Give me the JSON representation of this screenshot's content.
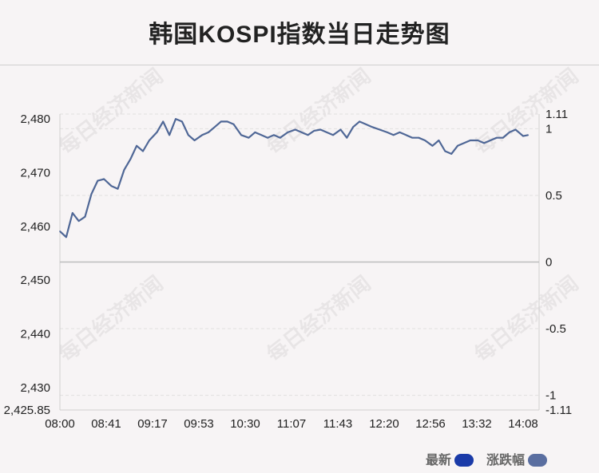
{
  "title": "韩国KOSPI指数当日走势图",
  "watermark_text": "每日经济新闻",
  "legend": {
    "latest_label": "最新",
    "change_label": "涨跌幅",
    "latest_color": "#1a3aa8",
    "change_color": "#5a6ea0"
  },
  "chart_data": {
    "type": "line",
    "title": "韩国KOSPI指数当日走势图",
    "line_color": "#4f6796",
    "x_ticks": [
      "08:00",
      "08:41",
      "09:17",
      "09:53",
      "10:30",
      "11:07",
      "11:43",
      "12:20",
      "12:56",
      "13:32",
      "14:08"
    ],
    "y_left": {
      "min": 2425.85,
      "max": 2480.9,
      "ticks": [
        "2,480",
        "2,470",
        "2,460",
        "2,450",
        "2,440",
        "2,430",
        "2,425.85"
      ],
      "tick_values": [
        2480,
        2470,
        2460,
        2450,
        2440,
        2430,
        2425.85
      ]
    },
    "y_right": {
      "min": -1.11,
      "max": 1.11,
      "ticks": [
        "1.11",
        "1",
        "0.5",
        "0",
        "-0.5",
        "-1",
        "-1.11"
      ],
      "tick_values": [
        1.11,
        1,
        0.5,
        0,
        -0.5,
        -1,
        -1.11
      ]
    },
    "baseline": 2453.3,
    "series": [
      {
        "x": [
          "08:00",
          "08:05",
          "08:10",
          "08:15",
          "08:20",
          "08:25",
          "08:30",
          "08:35",
          "08:41",
          "08:46",
          "08:51",
          "08:56",
          "09:01",
          "09:06",
          "09:11",
          "09:17",
          "09:22",
          "09:27",
          "09:32",
          "09:37",
          "09:42",
          "09:47",
          "09:53",
          "09:58",
          "10:03",
          "10:08",
          "10:13",
          "10:18",
          "10:24",
          "10:30",
          "10:35",
          "10:40",
          "10:45",
          "10:50",
          "10:55",
          "11:01",
          "11:07",
          "11:12",
          "11:17",
          "11:22",
          "11:27",
          "11:32",
          "11:37",
          "11:43",
          "11:48",
          "11:53",
          "11:58",
          "12:03",
          "12:08",
          "12:14",
          "12:20",
          "12:25",
          "12:30",
          "12:35",
          "12:40",
          "12:45",
          "12:50",
          "12:56",
          "13:01",
          "13:06",
          "13:11",
          "13:16",
          "13:21",
          "13:26",
          "13:32",
          "13:37",
          "13:42",
          "13:47",
          "13:52",
          "13:57",
          "14:02",
          "14:08",
          "14:12"
        ],
        "values": [
          2459.1,
          2458.0,
          2462.5,
          2461.0,
          2461.8,
          2466.0,
          2468.5,
          2468.8,
          2467.5,
          2467.0,
          2470.5,
          2472.5,
          2475.0,
          2474.0,
          2476.0,
          2477.5,
          2479.5,
          2477.0,
          2480.0,
          2479.5,
          2477.0,
          2476.0,
          2477.0,
          2477.5,
          2478.5,
          2479.5,
          2479.5,
          2479.0,
          2477.0,
          2476.5,
          2477.5,
          2477.0,
          2476.5,
          2477.0,
          2476.5,
          2477.5,
          2478.0,
          2477.5,
          2477.0,
          2477.8,
          2478.0,
          2477.5,
          2477.0,
          2478.0,
          2476.5,
          2478.5,
          2479.5,
          2479.0,
          2478.5,
          2478.0,
          2477.5,
          2477.0,
          2477.5,
          2477.0,
          2476.5,
          2476.5,
          2476.0,
          2475.0,
          2476.0,
          2474.0,
          2473.5,
          2475.0,
          2475.5,
          2476.0,
          2476.0,
          2475.5,
          2476.0,
          2476.5,
          2476.5,
          2477.5,
          2478.0,
          2476.8,
          2477.0
        ]
      }
    ],
    "grid": true
  }
}
